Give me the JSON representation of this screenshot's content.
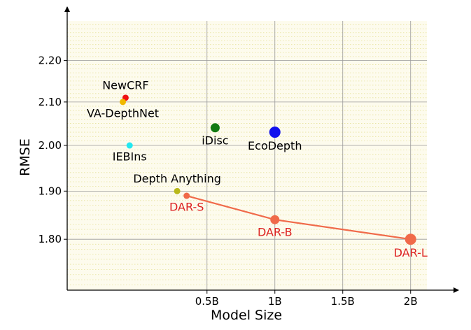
{
  "chart_data": {
    "type": "scatter",
    "title": "",
    "xlabel": "Model Size",
    "ylabel": "RMSE",
    "x_unit": "billion parameters",
    "xlim": [
      -0.53,
      2.12
    ],
    "ylim": [
      1.7,
      2.3
    ],
    "x_ticks": [
      {
        "value": 0.5,
        "label": "0.5B"
      },
      {
        "value": 1.0,
        "label": "1B"
      },
      {
        "value": 1.5,
        "label": "1.5B"
      },
      {
        "value": 2.0,
        "label": "2B"
      }
    ],
    "y_ticks": [
      {
        "value": 1.8,
        "label": "1.80"
      },
      {
        "value": 1.9,
        "label": "1.90"
      },
      {
        "value": 2.0,
        "label": "2.00"
      },
      {
        "value": 2.1,
        "label": "2.10"
      },
      {
        "value": 2.2,
        "label": "2.20"
      }
    ],
    "y_scale": "log",
    "grid": true,
    "baselines": [
      {
        "name": "NewCRF",
        "x": -0.1,
        "y": 2.11,
        "color": "#ee1111",
        "size": "small",
        "label_pos": "above"
      },
      {
        "name": "VA-DepthNet",
        "x": -0.12,
        "y": 2.1,
        "color": "#f0b800",
        "size": "small",
        "label_pos": "below"
      },
      {
        "name": "iDisc",
        "x": 0.56,
        "y": 2.04,
        "color": "#127a12",
        "size": "medium",
        "label_pos": "below"
      },
      {
        "name": "EcoDepth",
        "x": 1.0,
        "y": 2.03,
        "color": "#1111ee",
        "size": "large",
        "label_pos": "below"
      },
      {
        "name": "IEBIns",
        "x": -0.07,
        "y": 2.0,
        "color": "#22e8f0",
        "size": "small",
        "label_pos": "below"
      },
      {
        "name": "Depth Anything",
        "x": 0.28,
        "y": 1.9,
        "color": "#b8b81a",
        "size": "small",
        "label_pos": "above"
      }
    ],
    "series": [
      {
        "name": "DAR",
        "color": "#f06a4a",
        "label_color": "#dd2222",
        "points": [
          {
            "name": "DAR-S",
            "x": 0.35,
            "y": 1.89,
            "size": "small"
          },
          {
            "name": "DAR-B",
            "x": 1.0,
            "y": 1.84,
            "size": "medium"
          },
          {
            "name": "DAR-L",
            "x": 2.0,
            "y": 1.8,
            "size": "large"
          }
        ]
      }
    ]
  }
}
